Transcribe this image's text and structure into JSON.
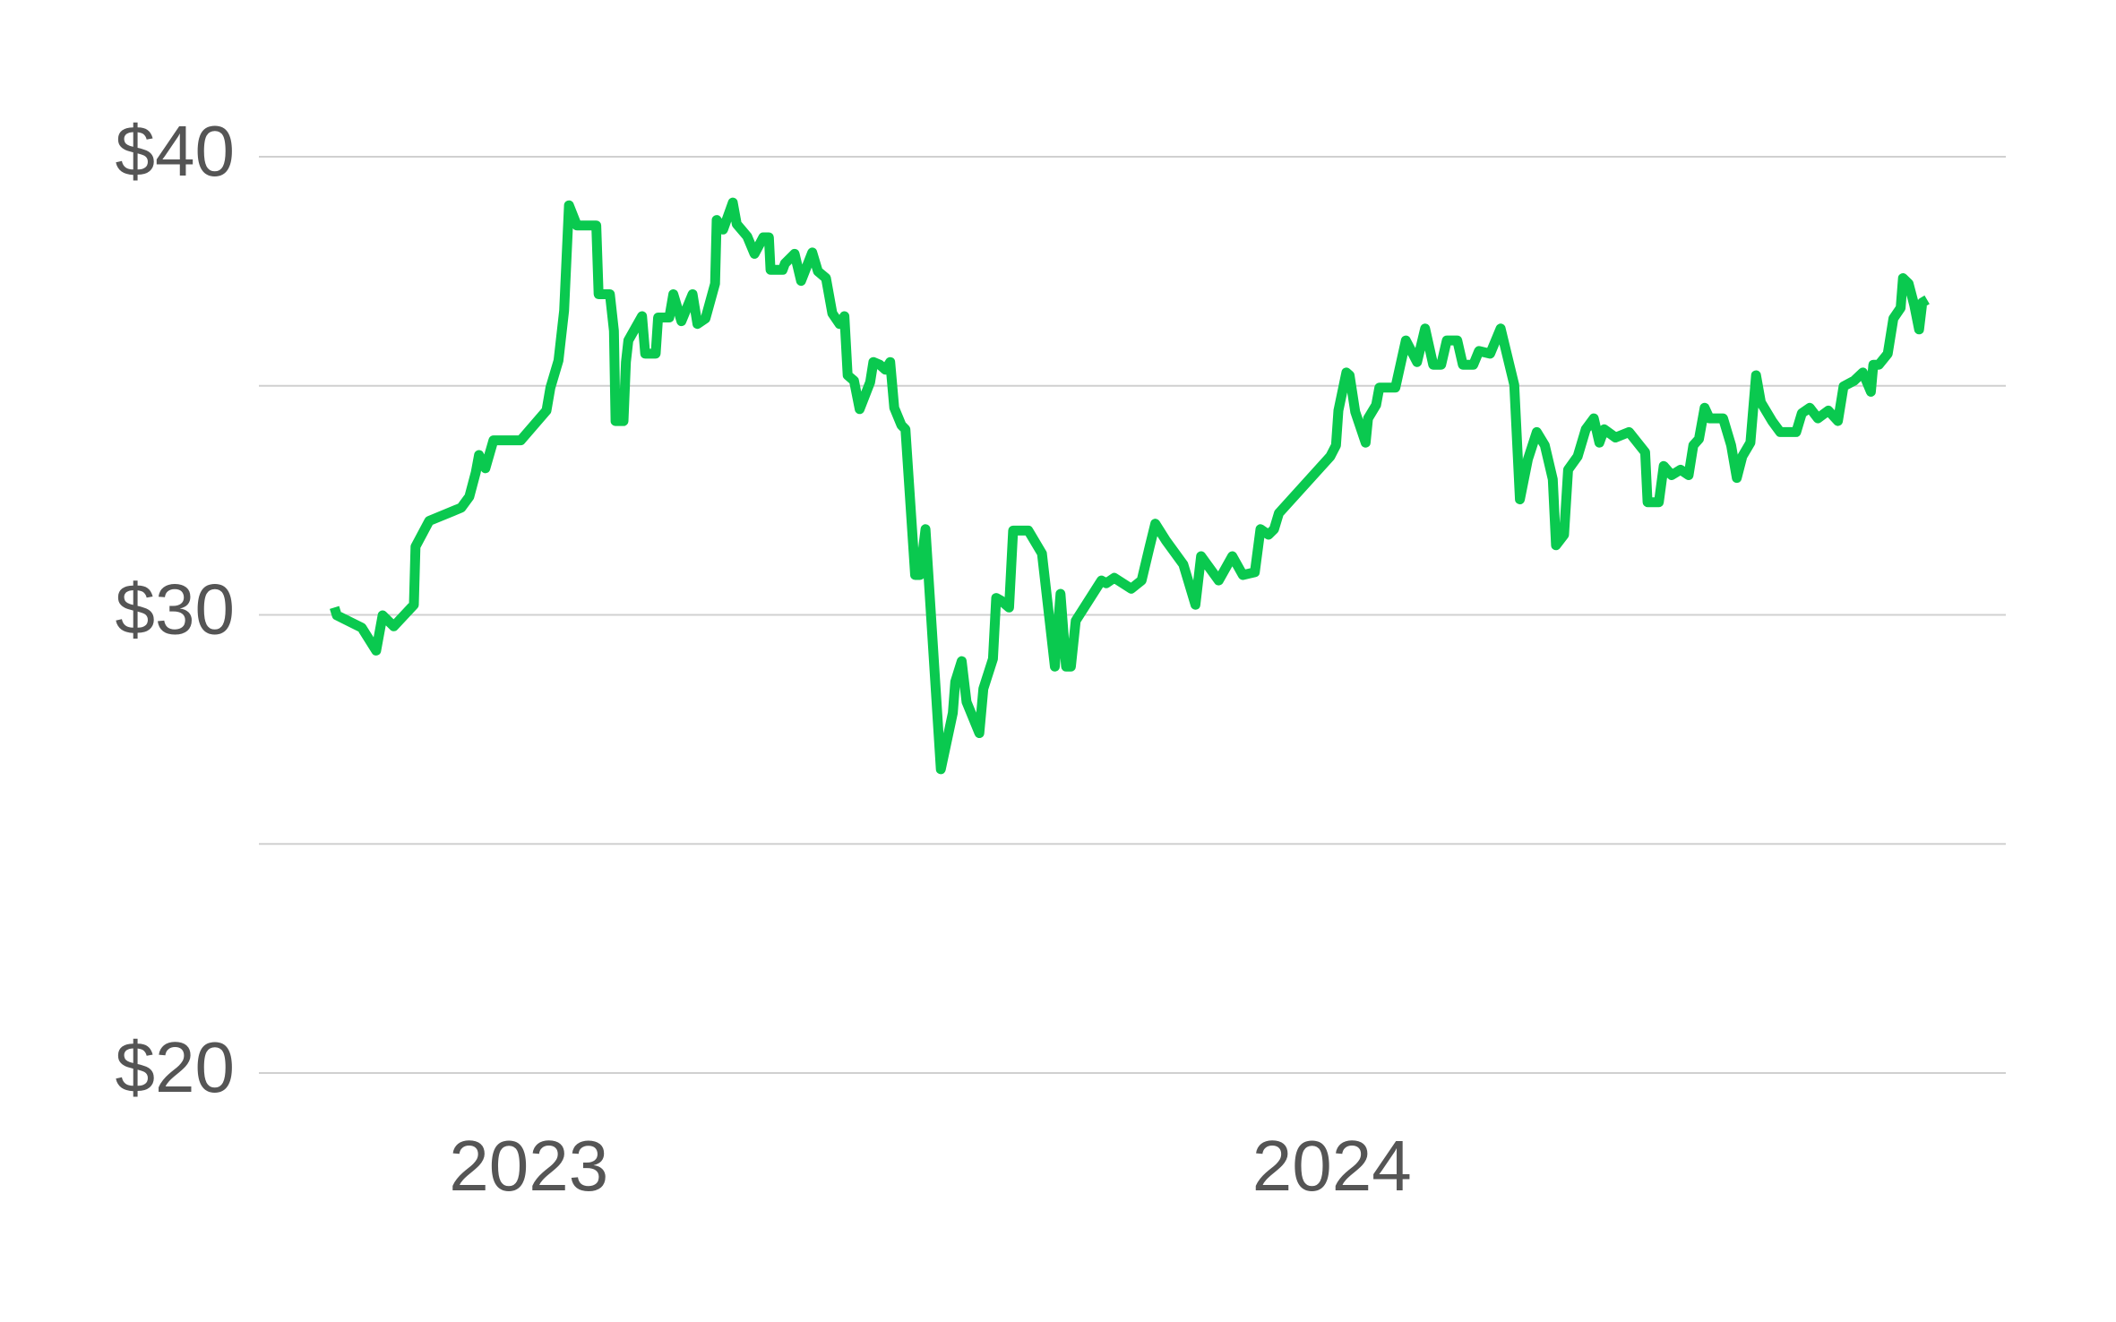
{
  "chart_data": {
    "type": "line",
    "x": [
      2022.758,
      2022.761,
      2022.792,
      2022.81,
      2022.818,
      2022.832,
      2022.857,
      2022.859,
      2022.876,
      2022.916,
      2022.926,
      2022.934,
      2022.938,
      2022.946,
      2022.956,
      2022.99,
      2023.022,
      2023.027,
      2023.037,
      2023.044,
      2023.05,
      2023.06,
      2023.084,
      2023.087,
      2023.101,
      2023.106,
      2023.108,
      2023.118,
      2023.121,
      2023.124,
      2023.141,
      2023.145,
      2023.158,
      2023.161,
      2023.175,
      2023.18,
      2023.19,
      2023.204,
      2023.21,
      2023.22,
      2023.232,
      2023.234,
      2023.242,
      2023.254,
      2023.259,
      2023.272,
      2023.281,
      2023.292,
      2023.299,
      2023.301,
      2023.316,
      2023.319,
      2023.331,
      2023.339,
      2023.353,
      2023.36,
      2023.37,
      2023.378,
      2023.387,
      2023.393,
      2023.397,
      2023.405,
      2023.412,
      2023.425,
      2023.429,
      2023.437,
      2023.444,
      2023.45,
      2023.455,
      2023.464,
      2023.469,
      2023.481,
      2023.487,
      2023.494,
      2023.513,
      2023.528,
      2023.531,
      2023.539,
      2023.545,
      2023.561,
      2023.566,
      2023.578,
      2023.582,
      2023.588,
      2023.598,
      2023.603,
      2023.622,
      2023.639,
      2023.655,
      2023.662,
      2023.669,
      2023.675,
      2023.681,
      2023.713,
      2023.719,
      2023.729,
      2023.75,
      2023.763,
      2023.773,
      2023.78,
      2023.793,
      2023.815,
      2023.83,
      2023.837,
      2023.859,
      2023.876,
      2023.889,
      2023.904,
      2023.911,
      2023.921,
      2023.928,
      2023.934,
      2023.998,
      2024.005,
      2024.008,
      2024.018,
      2024.022,
      2024.029,
      2024.042,
      2024.045,
      2024.055,
      2024.059,
      2024.079,
      2024.092,
      2024.106,
      2024.116,
      2024.126,
      2024.136,
      2024.143,
      2024.156,
      2024.163,
      2024.176,
      2024.183,
      2024.197,
      2024.21,
      2024.227,
      2024.234,
      2024.244,
      2024.255,
      2024.265,
      2024.275,
      2024.279,
      2024.289,
      2024.294,
      2024.306,
      2024.316,
      2024.326,
      2024.333,
      2024.339,
      2024.353,
      2024.37,
      2024.39,
      2024.393,
      2024.407,
      2024.413,
      2024.423,
      2024.434,
      2024.444,
      2024.45,
      2024.457,
      2024.464,
      2024.47,
      2024.487,
      2024.497,
      2024.504,
      2024.511,
      2024.521,
      2024.528,
      2024.534,
      2024.548,
      2024.558,
      2024.578,
      2024.585,
      2024.595,
      2024.605,
      2024.618,
      2024.63,
      2024.637,
      2024.65,
      2024.661,
      2024.671,
      2024.674,
      2024.681,
      2024.692,
      2024.699,
      2024.708,
      2024.711,
      2024.718,
      2024.725,
      2024.731,
      2024.735,
      2024.741
    ],
    "values": [
      30.16,
      29.99,
      29.72,
      29.22,
      29.99,
      29.75,
      30.22,
      31.49,
      32.05,
      32.34,
      32.58,
      33.11,
      33.49,
      33.2,
      33.81,
      33.81,
      34.46,
      34.96,
      35.55,
      36.64,
      38.94,
      38.5,
      38.5,
      37.0,
      37.0,
      36.2,
      34.23,
      34.23,
      35.52,
      35.99,
      36.52,
      35.7,
      35.7,
      36.49,
      36.49,
      37.0,
      36.41,
      37.0,
      36.35,
      36.47,
      37.23,
      38.62,
      38.41,
      39.0,
      38.53,
      38.26,
      37.88,
      38.24,
      38.24,
      37.53,
      37.53,
      37.67,
      37.88,
      37.29,
      37.91,
      37.5,
      37.35,
      36.58,
      36.35,
      36.52,
      35.23,
      35.11,
      34.49,
      35.08,
      35.52,
      35.46,
      35.35,
      35.52,
      34.52,
      34.14,
      34.05,
      30.87,
      30.87,
      31.87,
      26.63,
      27.86,
      28.54,
      28.99,
      28.1,
      27.42,
      28.39,
      29.04,
      30.37,
      30.31,
      30.16,
      31.84,
      31.84,
      31.34,
      28.87,
      30.46,
      28.87,
      28.87,
      29.87,
      30.75,
      30.69,
      30.81,
      30.57,
      30.75,
      31.49,
      31.99,
      31.63,
      31.1,
      30.22,
      31.28,
      30.75,
      31.28,
      30.87,
      30.93,
      31.87,
      31.75,
      31.87,
      32.22,
      33.46,
      33.7,
      34.46,
      35.29,
      35.23,
      34.43,
      33.76,
      34.29,
      34.58,
      34.96,
      34.96,
      35.99,
      35.52,
      36.25,
      35.46,
      35.46,
      35.99,
      35.99,
      35.46,
      35.46,
      35.76,
      35.7,
      36.25,
      35.02,
      32.52,
      33.4,
      33.99,
      33.7,
      32.96,
      31.52,
      31.75,
      33.17,
      33.46,
      34.05,
      34.29,
      33.76,
      34.05,
      33.87,
      33.99,
      33.55,
      32.46,
      32.46,
      33.25,
      33.05,
      33.17,
      33.05,
      33.7,
      33.84,
      34.52,
      34.29,
      34.29,
      33.7,
      32.99,
      33.46,
      33.76,
      35.23,
      34.64,
      34.23,
      33.99,
      33.99,
      34.4,
      34.52,
      34.29,
      34.46,
      34.23,
      34.99,
      35.11,
      35.29,
      34.87,
      35.46,
      35.46,
      35.7,
      36.47,
      36.7,
      37.35,
      37.23,
      36.76,
      36.23,
      36.82,
      36.88
    ],
    "color": "#0ac94f",
    "xlim": [
      2022.664,
      2024.839
    ],
    "xticks": [
      2023,
      2024
    ],
    "ylim": [
      20,
      40
    ],
    "yticks": [
      {
        "value": 20,
        "label": "$20"
      },
      {
        "value": 30,
        "label": "$30"
      },
      {
        "value": 40,
        "label": "$40"
      }
    ],
    "ygrid": [
      20,
      25,
      30,
      35,
      40
    ],
    "grid": true
  }
}
